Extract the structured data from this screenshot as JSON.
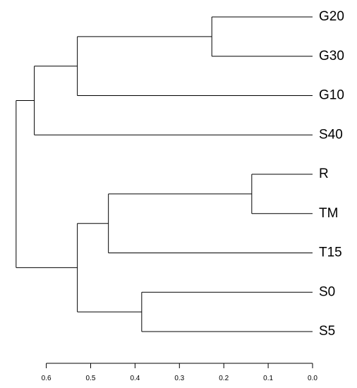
{
  "chart_data": {
    "type": "dendrogram",
    "orientation": "horizontal",
    "leaves": [
      "G20",
      "G30",
      "G10",
      "S40",
      "R",
      "TM",
      "T15",
      "S0",
      "S5"
    ],
    "merges": [
      {
        "id": "n1",
        "children": [
          "G20",
          "G30"
        ],
        "height": 0.227
      },
      {
        "id": "n2",
        "children": [
          "n1",
          "G10"
        ],
        "height": 0.53
      },
      {
        "id": "n3",
        "children": [
          "n2",
          "S40"
        ],
        "height": 0.627
      },
      {
        "id": "n4",
        "children": [
          "R",
          "TM"
        ],
        "height": 0.137
      },
      {
        "id": "n5",
        "children": [
          "n4",
          "T15"
        ],
        "height": 0.46
      },
      {
        "id": "n6",
        "children": [
          "S0",
          "S5"
        ],
        "height": 0.385
      },
      {
        "id": "n7",
        "children": [
          "n5",
          "n6"
        ],
        "height": 0.53
      },
      {
        "id": "n8",
        "children": [
          "n3",
          "n7"
        ],
        "height": 0.668
      }
    ],
    "axis": {
      "ticks": [
        0.6,
        0.5,
        0.4,
        0.3,
        0.2,
        0.1,
        0.0
      ],
      "tick_labels": [
        "0.6",
        "0.5",
        "0.4",
        "0.3",
        "0.2",
        "0.1",
        "0.0"
      ],
      "range": [
        0.6,
        0.0
      ],
      "reversed": true
    },
    "grid": false
  }
}
